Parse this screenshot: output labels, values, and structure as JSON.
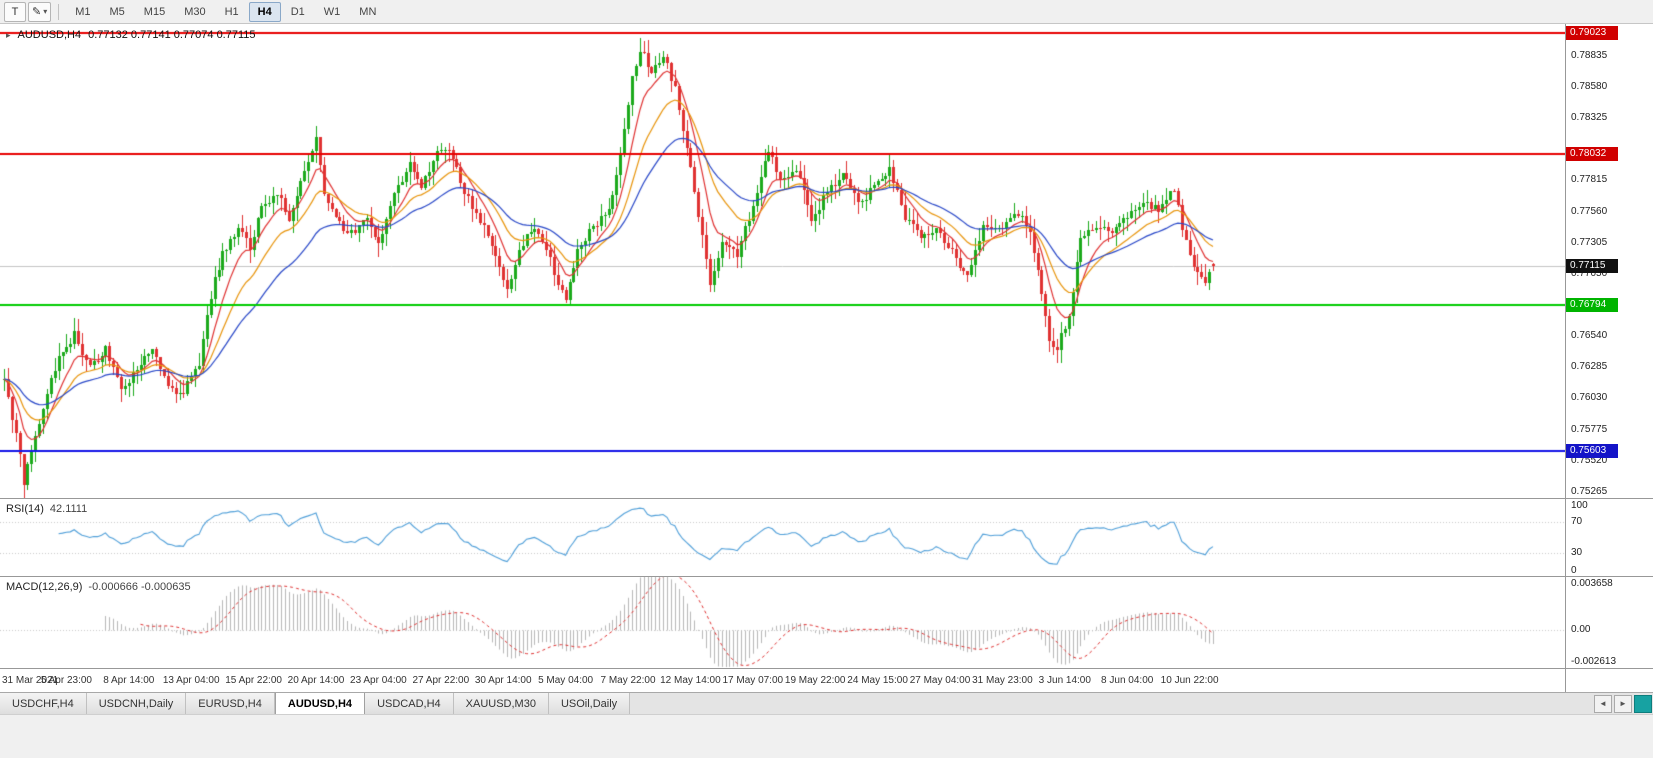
{
  "toolbar": {
    "text_tool": "T",
    "draw_tool_icon": "pen",
    "dropdown_caret": "▾",
    "timeframes": [
      "M1",
      "M5",
      "M15",
      "M30",
      "H1",
      "H4",
      "D1",
      "W1",
      "MN"
    ],
    "active_timeframe": "H4"
  },
  "main_chart": {
    "symbol_title": "AUDUSD,H4",
    "ohlc_text": "0.77132 0.77141 0.77074 0.77115"
  },
  "rsi_panel": {
    "name": "RSI(14)",
    "value": "42.1111"
  },
  "macd_panel": {
    "name": "MACD(12,26,9)",
    "values": "-0.000666 -0.000635"
  },
  "tab_bar": {
    "tabs": [
      "USDCHF,H4",
      "USDCNH,Daily",
      "EURUSD,H4",
      "AUDUSD,H4",
      "USDCAD,H4",
      "XAUUSD,M30",
      "USOil,Daily"
    ],
    "active": "AUDUSD,H4"
  },
  "chart_data": {
    "type": "candlestick",
    "symbol": "AUDUSD",
    "timeframe": "H4",
    "ohlc_current": {
      "open": 0.77132,
      "high": 0.77141,
      "low": 0.77074,
      "close": 0.77115
    },
    "candle_count": 311,
    "price_range": [
      0.75215,
      0.79095
    ],
    "seed": 20210611,
    "candle_up_color": "#1caa1c",
    "candle_down_color": "#e03232",
    "close_anchors": [
      [
        0,
        0.7618
      ],
      [
        2,
        0.7588
      ],
      [
        4,
        0.7555
      ],
      [
        5,
        0.753
      ],
      [
        7,
        0.7562
      ],
      [
        10,
        0.7596
      ],
      [
        14,
        0.7638
      ],
      [
        18,
        0.7655
      ],
      [
        22,
        0.7628
      ],
      [
        26,
        0.7645
      ],
      [
        30,
        0.7608
      ],
      [
        34,
        0.7628
      ],
      [
        38,
        0.7642
      ],
      [
        42,
        0.7612
      ],
      [
        46,
        0.7608
      ],
      [
        50,
        0.7632
      ],
      [
        53,
        0.7688
      ],
      [
        56,
        0.7722
      ],
      [
        60,
        0.774
      ],
      [
        63,
        0.7728
      ],
      [
        66,
        0.7758
      ],
      [
        70,
        0.7772
      ],
      [
        73,
        0.7748
      ],
      [
        77,
        0.7788
      ],
      [
        80,
        0.7815
      ],
      [
        82,
        0.7772
      ],
      [
        86,
        0.7746
      ],
      [
        90,
        0.7736
      ],
      [
        93,
        0.7752
      ],
      [
        96,
        0.7732
      ],
      [
        100,
        0.7768
      ],
      [
        104,
        0.7796
      ],
      [
        107,
        0.7776
      ],
      [
        111,
        0.7806
      ],
      [
        114,
        0.7808
      ],
      [
        118,
        0.7772
      ],
      [
        122,
        0.7748
      ],
      [
        126,
        0.7722
      ],
      [
        129,
        0.7692
      ],
      [
        132,
        0.7726
      ],
      [
        136,
        0.7742
      ],
      [
        140,
        0.7716
      ],
      [
        144,
        0.7682
      ],
      [
        147,
        0.7726
      ],
      [
        151,
        0.7742
      ],
      [
        155,
        0.7758
      ],
      [
        158,
        0.78
      ],
      [
        161,
        0.7868
      ],
      [
        163,
        0.7888
      ],
      [
        166,
        0.7872
      ],
      [
        169,
        0.7882
      ],
      [
        172,
        0.7858
      ],
      [
        175,
        0.7808
      ],
      [
        178,
        0.7752
      ],
      [
        181,
        0.7698
      ],
      [
        184,
        0.773
      ],
      [
        188,
        0.7722
      ],
      [
        192,
        0.7762
      ],
      [
        196,
        0.7806
      ],
      [
        199,
        0.7782
      ],
      [
        203,
        0.7792
      ],
      [
        207,
        0.7748
      ],
      [
        211,
        0.7772
      ],
      [
        215,
        0.7786
      ],
      [
        219,
        0.7762
      ],
      [
        223,
        0.7776
      ],
      [
        227,
        0.7792
      ],
      [
        231,
        0.7752
      ],
      [
        235,
        0.7736
      ],
      [
        239,
        0.7742
      ],
      [
        243,
        0.7722
      ],
      [
        247,
        0.7702
      ],
      [
        251,
        0.7746
      ],
      [
        255,
        0.7742
      ],
      [
        259,
        0.7756
      ],
      [
        263,
        0.7742
      ],
      [
        266,
        0.7692
      ],
      [
        268,
        0.7652
      ],
      [
        270,
        0.7645
      ],
      [
        273,
        0.7672
      ],
      [
        276,
        0.7732
      ],
      [
        280,
        0.7746
      ],
      [
        284,
        0.7736
      ],
      [
        288,
        0.7752
      ],
      [
        292,
        0.7766
      ],
      [
        296,
        0.7756
      ],
      [
        300,
        0.7776
      ],
      [
        302,
        0.7744
      ],
      [
        305,
        0.7708
      ],
      [
        308,
        0.7698
      ],
      [
        310,
        0.77115
      ]
    ],
    "hlines": [
      {
        "price": 0.79023,
        "label": "0.79023",
        "color": "#e80000",
        "badge_bg": "#d00000"
      },
      {
        "price": 0.78032,
        "label": "0.78032",
        "color": "#e80000",
        "badge_bg": "#d00000"
      },
      {
        "price": 0.76794,
        "label": "0.76794",
        "color": "#00cc00",
        "badge_bg": "#00b400"
      },
      {
        "price": 0.75603,
        "label": "0.75603",
        "color": "#1414e8",
        "badge_bg": "#1414c8"
      }
    ],
    "bid_line": {
      "price": 0.77115,
      "label": "0.77115",
      "color": "#c4c4c4",
      "badge_bg": "#111111"
    },
    "moving_averages": [
      {
        "period": 8,
        "color": "#e03232"
      },
      {
        "period": 17,
        "color": "#e8940a"
      },
      {
        "period": 34,
        "color": "#2847c8"
      }
    ],
    "price_ticks": [
      0.78835,
      0.7858,
      0.78325,
      0.7807,
      0.77815,
      0.7756,
      0.77305,
      0.7705,
      0.76795,
      0.7654,
      0.76285,
      0.7603,
      0.75775,
      0.7552,
      0.75265
    ],
    "rsi": {
      "period": 14,
      "color": "#4f9fd9",
      "levels": [
        100,
        70,
        30,
        0
      ],
      "current": 42.1111
    },
    "macd": {
      "fast": 12,
      "slow": 26,
      "signal": 9,
      "histogram_color": "#b8b8b8",
      "signal_color": "#e03232",
      "scale_max": 0.003658,
      "scale_min": -0.002613,
      "scale_max_label": "0.003658",
      "scale_mid_label": "0.00",
      "scale_min_label": "-0.002613",
      "current_main": -0.000666,
      "current_signal": -0.000635
    },
    "time_ticks": [
      {
        "i": 0,
        "label": "31 Mar 2021"
      },
      {
        "i": 16,
        "label": "5 Apr 23:00"
      },
      {
        "i": 32,
        "label": "8 Apr 14:00"
      },
      {
        "i": 48,
        "label": "13 Apr 04:00"
      },
      {
        "i": 64,
        "label": "15 Apr 22:00"
      },
      {
        "i": 80,
        "label": "20 Apr 14:00"
      },
      {
        "i": 96,
        "label": "23 Apr 04:00"
      },
      {
        "i": 112,
        "label": "27 Apr 22:00"
      },
      {
        "i": 128,
        "label": "30 Apr 14:00"
      },
      {
        "i": 144,
        "label": "5 May 04:00"
      },
      {
        "i": 160,
        "label": "7 May 22:00"
      },
      {
        "i": 176,
        "label": "12 May 14:00"
      },
      {
        "i": 192,
        "label": "17 May 07:00"
      },
      {
        "i": 208,
        "label": "19 May 22:00"
      },
      {
        "i": 224,
        "label": "24 May 15:00"
      },
      {
        "i": 240,
        "label": "27 May 04:00"
      },
      {
        "i": 256,
        "label": "31 May 23:00"
      },
      {
        "i": 272,
        "label": "3 Jun 14:00"
      },
      {
        "i": 288,
        "label": "8 Jun 04:00"
      },
      {
        "i": 304,
        "label": "10 Jun 22:00"
      }
    ]
  }
}
